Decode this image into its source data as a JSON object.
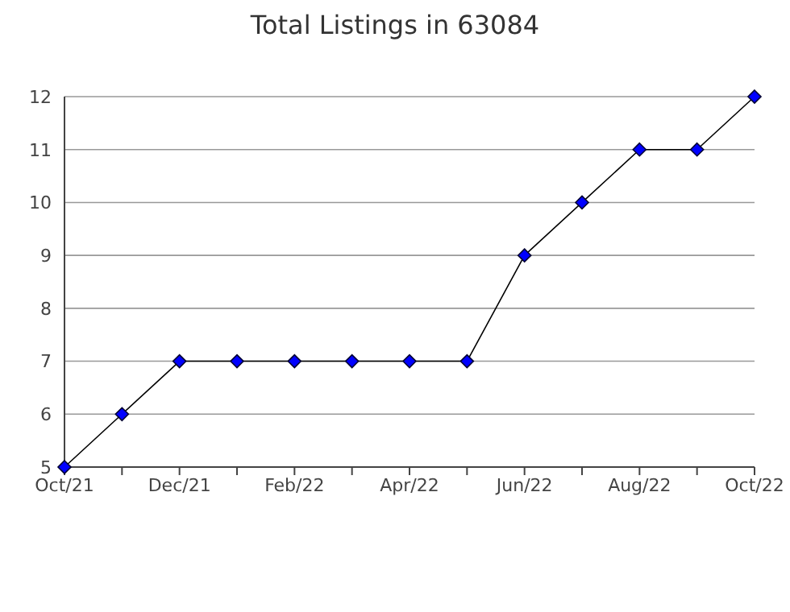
{
  "chart_data": {
    "type": "line",
    "title": "Total Listings in 63084",
    "categories": [
      "Oct/21",
      null,
      "Dec/21",
      null,
      "Feb/22",
      null,
      "Apr/22",
      null,
      "Jun/22",
      null,
      "Aug/22",
      null,
      "Oct/22"
    ],
    "series": [
      {
        "color": "#0000ff",
        "values": [
          5,
          6,
          7,
          7,
          7,
          7,
          7,
          7,
          9,
          10,
          11,
          11,
          12
        ]
      }
    ],
    "ylim": [
      5,
      12
    ],
    "yticks": [
      5,
      6,
      7,
      8,
      9,
      10,
      11,
      12
    ],
    "grid": "y",
    "marker": "diamond",
    "line_style": "solid"
  }
}
